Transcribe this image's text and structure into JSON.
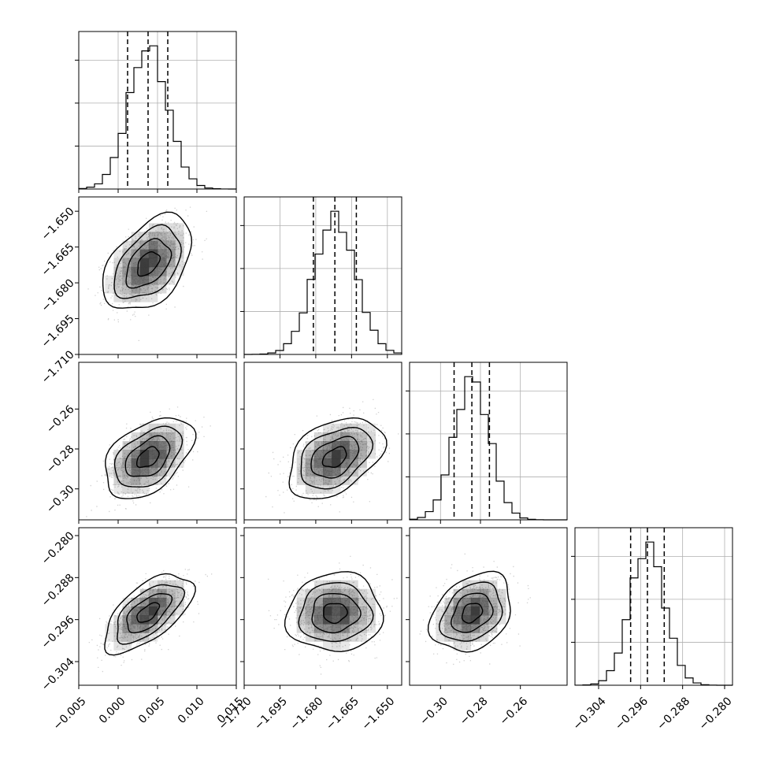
{
  "chart_data": {
    "type": "corner",
    "params": [
      {
        "id": "p0",
        "mean": 0.0038,
        "std": 0.00245,
        "quantiles": [
          0.0012,
          0.0038,
          0.0063
        ],
        "range": [
          -0.005,
          0.015
        ],
        "ticks": [
          -0.005,
          0.0,
          0.005,
          0.01,
          0.015
        ],
        "tick_labels": [
          "−0.005",
          "0.000",
          "0.005",
          "0.010",
          "0.015"
        ]
      },
      {
        "id": "p1",
        "mean": -1.672,
        "std": 0.0087,
        "quantiles": [
          -1.681,
          -1.672,
          -1.663
        ],
        "range": [
          -1.71,
          -1.644
        ],
        "ticks": [
          -1.71,
          -1.695,
          -1.68,
          -1.665,
          -1.65
        ],
        "tick_labels": [
          "−1.710",
          "−1.695",
          "−1.680",
          "−1.665",
          "−1.650"
        ]
      },
      {
        "id": "p2",
        "mean": -0.2843,
        "std": 0.0088,
        "quantiles": [
          -0.2932,
          -0.2843,
          -0.2755
        ],
        "range": [
          -0.3155,
          -0.2366
        ],
        "ticks": [
          -0.3,
          -0.28,
          -0.26
        ],
        "tick_labels": [
          "−0.30",
          "−0.28",
          "−0.26"
        ]
      },
      {
        "id": "p3",
        "mean": -0.2947,
        "std": 0.00325,
        "quantiles": [
          -0.2979,
          -0.2947,
          -0.2915
        ],
        "range": [
          -0.3085,
          -0.2785
        ],
        "ticks": [
          -0.304,
          -0.296,
          -0.288,
          -0.28
        ],
        "tick_labels": [
          "−0.304",
          "−0.296",
          "−0.288",
          "−0.280"
        ]
      }
    ],
    "correlations": [
      [
        1.0,
        0.45,
        0.45,
        0.62
      ],
      [
        0.45,
        1.0,
        0.4,
        0.05
      ],
      [
        0.45,
        0.4,
        1.0,
        0.3
      ],
      [
        0.62,
        0.05,
        0.3,
        1.0
      ]
    ],
    "diagonal_ytick_fractions": [
      0.3,
      0.6,
      0.9
    ],
    "histogram_bins": 20,
    "contour_levels_sigma": [
      0.5,
      1.0,
      1.5,
      2.0
    ],
    "grid": true,
    "colors": {
      "hist_line": "#000000",
      "contour_line": "#000000",
      "scatter": "#aaaaaa",
      "density_fill": "#333333",
      "grid": "#b0b0b0"
    }
  }
}
